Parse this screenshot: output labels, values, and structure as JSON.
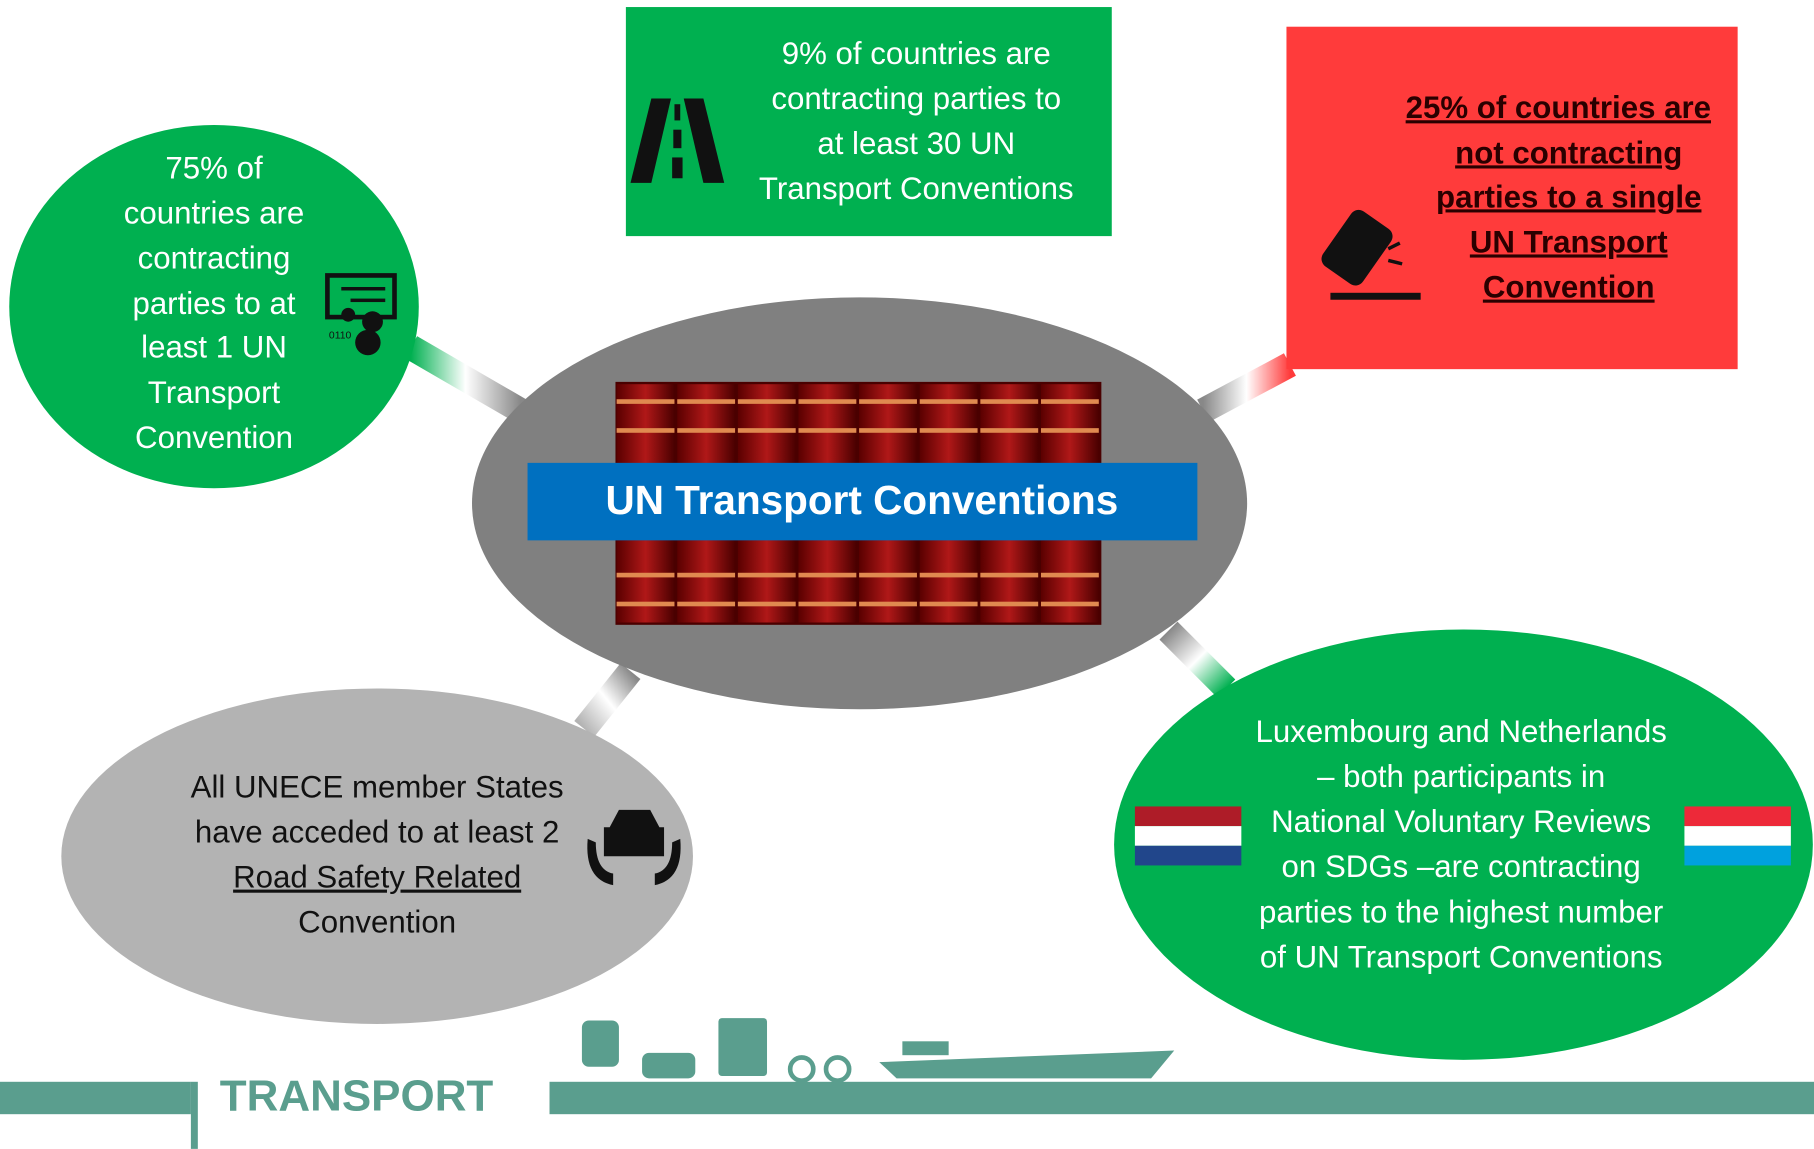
{
  "center": {
    "label": "UN Transport Conventions"
  },
  "nodes": [
    {
      "lines": [
        "75% of",
        "countries are",
        "contracting",
        "parties to at",
        "least 1 UN",
        "Transport",
        "Convention"
      ]
    },
    {
      "lines": [
        "9% of countries are",
        "contracting parties to",
        "at least 30 UN",
        "Transport Conventions"
      ]
    },
    {
      "lines": [
        "25% of countries are",
        "not contracting",
        "parties to a single",
        "UN Transport",
        "Convention"
      ]
    },
    {
      "lines": [
        "All UNECE member States",
        "have acceded to at least 2",
        "Road Safety Related",
        "Convention"
      ]
    },
    {
      "lines": [
        "Luxembourg and Netherlands",
        "– both participants in",
        "National Voluntary Reviews",
        "on SDGs –are contracting",
        "parties to the highest number",
        "of UN Transport Conventions"
      ]
    }
  ],
  "footer": {
    "label": "TRANSPORT"
  }
}
